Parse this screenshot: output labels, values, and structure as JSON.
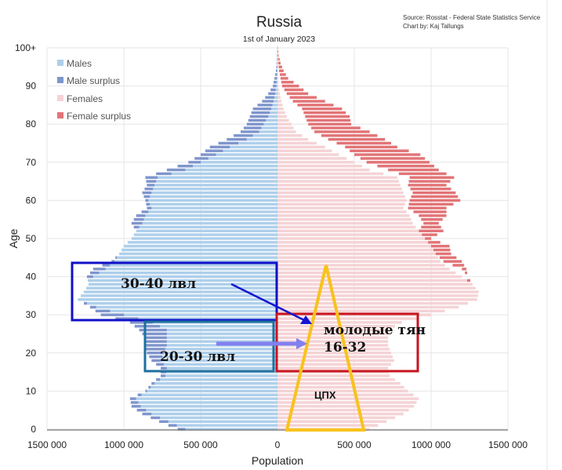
{
  "chart_data": {
    "type": "bar",
    "orientation": "horizontal-pyramid",
    "title": "Russia",
    "subtitle": "1st of January 2023",
    "source_lines": [
      "Source: Rosstat - Federal State Statistics Service",
      "Chart by: Kaj Tallungs"
    ],
    "xlabel": "Population",
    "ylabel": "Age",
    "xlim": [
      -1500000,
      1500000
    ],
    "ylim": [
      0,
      100
    ],
    "x_ticks": [
      "1500 000",
      "1000 000",
      "500 000",
      "0",
      "500 000",
      "1000 000",
      "1500 000"
    ],
    "y_ticks": [
      "0",
      "10",
      "20",
      "30",
      "40",
      "50",
      "60",
      "70",
      "80",
      "90",
      "100+"
    ],
    "legend_position": "top-left",
    "grid": true,
    "series": [
      {
        "name": "Males",
        "color": "#aecfeb"
      },
      {
        "name": "Male surplus",
        "color": "#7f95cc"
      },
      {
        "name": "Females",
        "color": "#f5d3d5"
      },
      {
        "name": "Female surplus",
        "color": "#e27477"
      }
    ],
    "age_points": [
      0,
      2,
      4,
      6,
      8,
      10,
      12,
      14,
      16,
      18,
      20,
      22,
      24,
      26,
      28,
      30,
      32,
      34,
      36,
      38,
      40,
      42,
      44,
      46,
      48,
      50,
      52,
      54,
      56,
      58,
      60,
      62,
      64,
      66,
      68,
      70,
      72,
      74,
      76,
      78,
      80,
      82,
      84,
      86,
      88,
      90,
      92,
      94,
      96,
      98,
      100
    ],
    "males": [
      650000,
      770000,
      880000,
      950000,
      960000,
      860000,
      820000,
      760000,
      760000,
      820000,
      850000,
      860000,
      860000,
      900000,
      960000,
      1150000,
      1220000,
      1300000,
      1260000,
      1230000,
      1240000,
      1200000,
      1080000,
      1030000,
      1000000,
      950000,
      920000,
      950000,
      920000,
      850000,
      860000,
      880000,
      850000,
      860000,
      720000,
      580000,
      500000,
      440000,
      330000,
      240000,
      200000,
      180000,
      160000,
      100000,
      60000,
      30000,
      20000,
      10000,
      5000,
      3000,
      1000
    ],
    "females": [
      600000,
      710000,
      820000,
      890000,
      920000,
      850000,
      800000,
      730000,
      720000,
      760000,
      740000,
      720000,
      720000,
      720000,
      810000,
      1000000,
      1180000,
      1300000,
      1310000,
      1270000,
      1200000,
      1120000,
      1060000,
      1030000,
      1000000,
      960000,
      920000,
      880000,
      860000,
      820000,
      840000,
      820000,
      800000,
      780000,
      600000,
      500000,
      400000,
      310000,
      200000,
      120000,
      90000,
      60000,
      40000,
      25000,
      15000,
      8000,
      4000,
      2000,
      1000,
      500,
      200
    ],
    "male_surplus": [
      650000,
      770000,
      880000,
      950000,
      960000,
      860000,
      820000,
      760000,
      760000,
      820000,
      850000,
      860000,
      860000,
      900000,
      960000,
      1150000,
      1220000,
      1300000,
      1260000,
      1230000,
      1240000,
      1200000,
      1080000,
      1030000,
      1000000,
      950000,
      920000,
      950000,
      920000,
      850000,
      860000,
      880000,
      850000,
      860000,
      720000,
      580000,
      500000,
      440000,
      330000,
      240000,
      200000,
      180000,
      160000,
      100000,
      60000,
      30000,
      20000,
      10000,
      5000,
      3000,
      1000
    ],
    "female_surplus": [
      600000,
      710000,
      820000,
      890000,
      920000,
      850000,
      800000,
      730000,
      720000,
      760000,
      740000,
      720000,
      720000,
      720000,
      810000,
      1000000,
      1180000,
      1300000,
      1310000,
      1270000,
      1200000,
      1120000,
      1060000,
      1030000,
      1000000,
      960000,
      920000,
      880000,
      860000,
      820000,
      840000,
      820000,
      800000,
      780000,
      600000,
      500000,
      400000,
      310000,
      200000,
      120000,
      90000,
      60000,
      40000,
      25000,
      15000,
      8000,
      4000,
      2000,
      1000,
      500,
      200
    ],
    "male_base": [
      600000,
      710000,
      820000,
      890000,
      920000,
      850000,
      800000,
      730000,
      720000,
      760000,
      740000,
      720000,
      720000,
      720000,
      810000,
      1150000,
      1220000,
      1300000,
      1260000,
      1230000,
      1200000,
      1120000,
      1060000,
      1030000,
      1000000,
      950000,
      920000,
      880000,
      860000,
      820000,
      840000,
      820000,
      800000,
      780000,
      600000,
      500000,
      400000,
      310000,
      200000,
      120000,
      90000,
      60000,
      40000,
      25000,
      15000,
      8000,
      4000,
      2000,
      1000,
      500,
      200
    ],
    "female_full": [
      600000,
      710000,
      820000,
      890000,
      920000,
      850000,
      800000,
      730000,
      720000,
      760000,
      740000,
      720000,
      720000,
      720000,
      810000,
      1000000,
      1180000,
      1300000,
      1310000,
      1270000,
      1240000,
      1230000,
      1200000,
      1130000,
      1120000,
      1000000,
      1080000,
      1050000,
      1100000,
      1100000,
      1190000,
      1160000,
      1100000,
      1150000,
      1050000,
      990000,
      930000,
      780000,
      700000,
      600000,
      480000,
      470000,
      420000,
      310000,
      200000,
      140000,
      70000,
      40000,
      20000,
      8000,
      3000
    ]
  },
  "annotations": {
    "box_30_40": "30-40 лвл",
    "box_20_30": "20-30 лвл",
    "box_young_line1": "молодые тян",
    "box_young_line2": "16-32",
    "triangle_label": "ЦПХ",
    "colors": {
      "blue_box": "#1010c8",
      "teal_box": "#1f6f9e",
      "red_box": "#c8141e",
      "triangle": "#f8c31c",
      "arrow_dark": "#1414d2",
      "arrow_light": "#8080f0"
    }
  }
}
